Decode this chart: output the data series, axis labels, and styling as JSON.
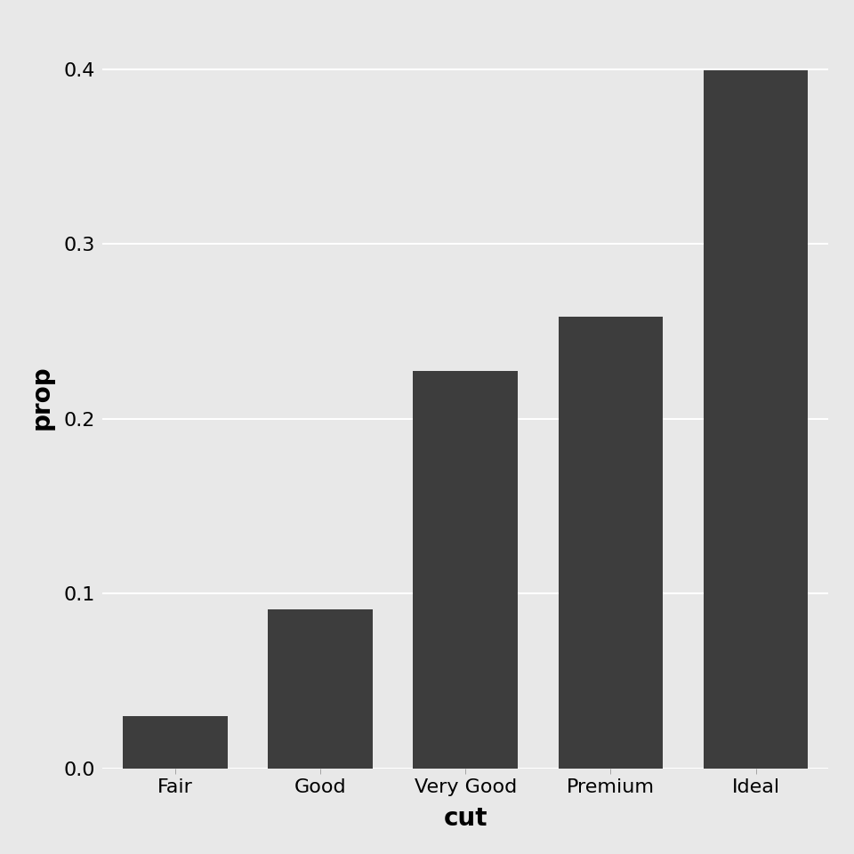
{
  "categories": [
    "Fair",
    "Good",
    "Very Good",
    "Premium",
    "Ideal"
  ],
  "values": [
    0.03,
    0.0909,
    0.2273,
    0.2584,
    0.3996
  ],
  "bar_color": "#3d3d3d",
  "xlabel": "cut",
  "ylabel": "prop",
  "ylim": [
    0,
    0.425
  ],
  "yticks": [
    0.0,
    0.1,
    0.2,
    0.3,
    0.4
  ],
  "background_color": "#e8e8e8",
  "panel_color": "#e8e8e8",
  "grid_color": "#ffffff",
  "xlabel_fontsize": 20,
  "ylabel_fontsize": 20,
  "tick_fontsize": 16,
  "bar_width": 0.72
}
